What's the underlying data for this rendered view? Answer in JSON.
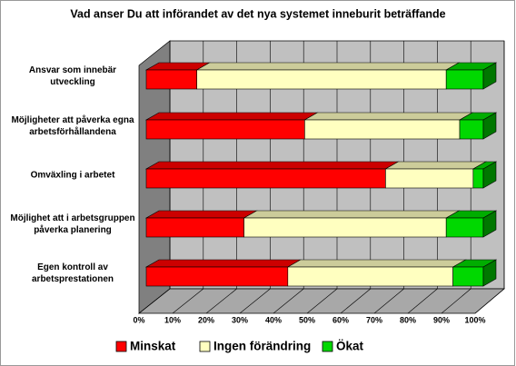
{
  "chart_data": {
    "type": "stacked-bar-3d",
    "orientation": "horizontal",
    "title": "Vad anser Du att införandet av det nya systemet inneburit beträffande",
    "categories": [
      "Ansvar som innebär utveckling",
      "Möjligheter att påverka egna arbetsförhållandena",
      "Omväxling i arbetet",
      "Möjlighet att i arbetsgruppen påverka planering",
      "Egen kontroll av arbetsprestationen"
    ],
    "series": [
      {
        "name": "Minskat",
        "color": "#ff0000",
        "values": [
          15,
          47,
          71,
          29,
          42
        ]
      },
      {
        "name": "Ingen förändring",
        "color": "#ffffc0",
        "values": [
          74,
          46,
          26,
          60,
          49
        ]
      },
      {
        "name": "Ökat",
        "color": "#00d800",
        "values": [
          11,
          7,
          3,
          11,
          9
        ]
      }
    ],
    "xlim": [
      0,
      100
    ],
    "xticks": [
      {
        "value": 0,
        "label": "0%"
      },
      {
        "value": 10,
        "label": "10%"
      },
      {
        "value": 20,
        "label": "20%"
      },
      {
        "value": 30,
        "label": "30%"
      },
      {
        "value": 40,
        "label": "40%"
      },
      {
        "value": 50,
        "label": "50%"
      },
      {
        "value": 60,
        "label": "60%"
      },
      {
        "value": 70,
        "label": "70%"
      },
      {
        "value": 80,
        "label": "80%"
      },
      {
        "value": 90,
        "label": "90%"
      },
      {
        "value": 100,
        "label": "100%"
      }
    ],
    "grid": true,
    "legend": "bottom"
  }
}
